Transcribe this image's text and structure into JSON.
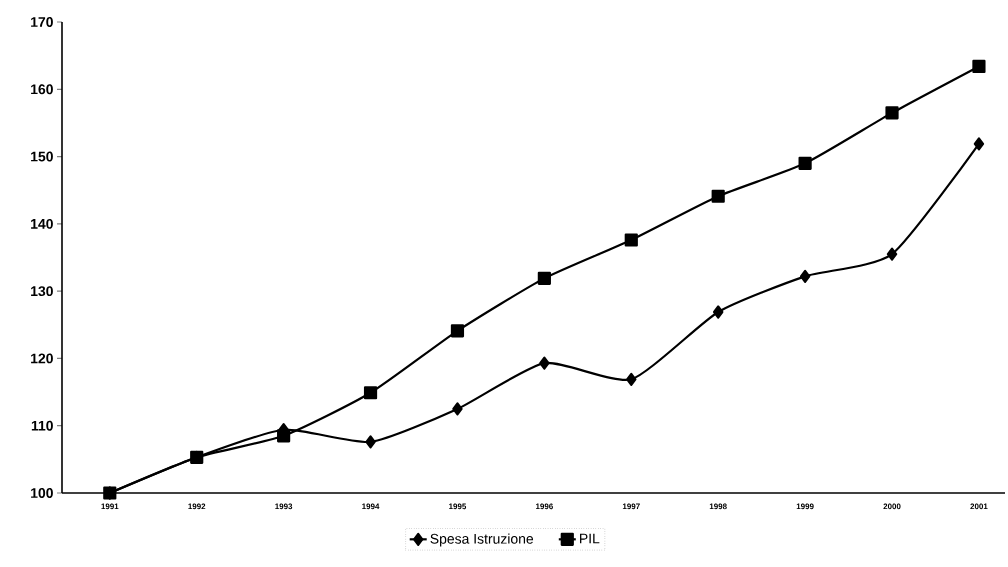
{
  "chart_data": {
    "type": "line",
    "categories": [
      "1991",
      "1992",
      "1993",
      "1994",
      "1995",
      "1996",
      "1997",
      "1998",
      "1999",
      "2000",
      "2001"
    ],
    "series": [
      {
        "name": "Spesa Istruzione",
        "color": "#000000",
        "marker": "diamond",
        "values": [
          100,
          105.3,
          109.4,
          107.6,
          112.5,
          119.3,
          116.9,
          126.9,
          132.2,
          135.5,
          151.9
        ]
      },
      {
        "name": "PIL",
        "color": "#000000",
        "marker": "square",
        "values": [
          100,
          105.3,
          108.5,
          114.9,
          124.1,
          131.9,
          137.6,
          144.1,
          149.0,
          156.5,
          163.4
        ]
      }
    ],
    "ylim": [
      100,
      170
    ],
    "yticks": [
      100,
      110,
      120,
      130,
      140,
      150,
      160,
      170
    ],
    "legend": "bottom",
    "grid": false,
    "line_style": "solid"
  }
}
